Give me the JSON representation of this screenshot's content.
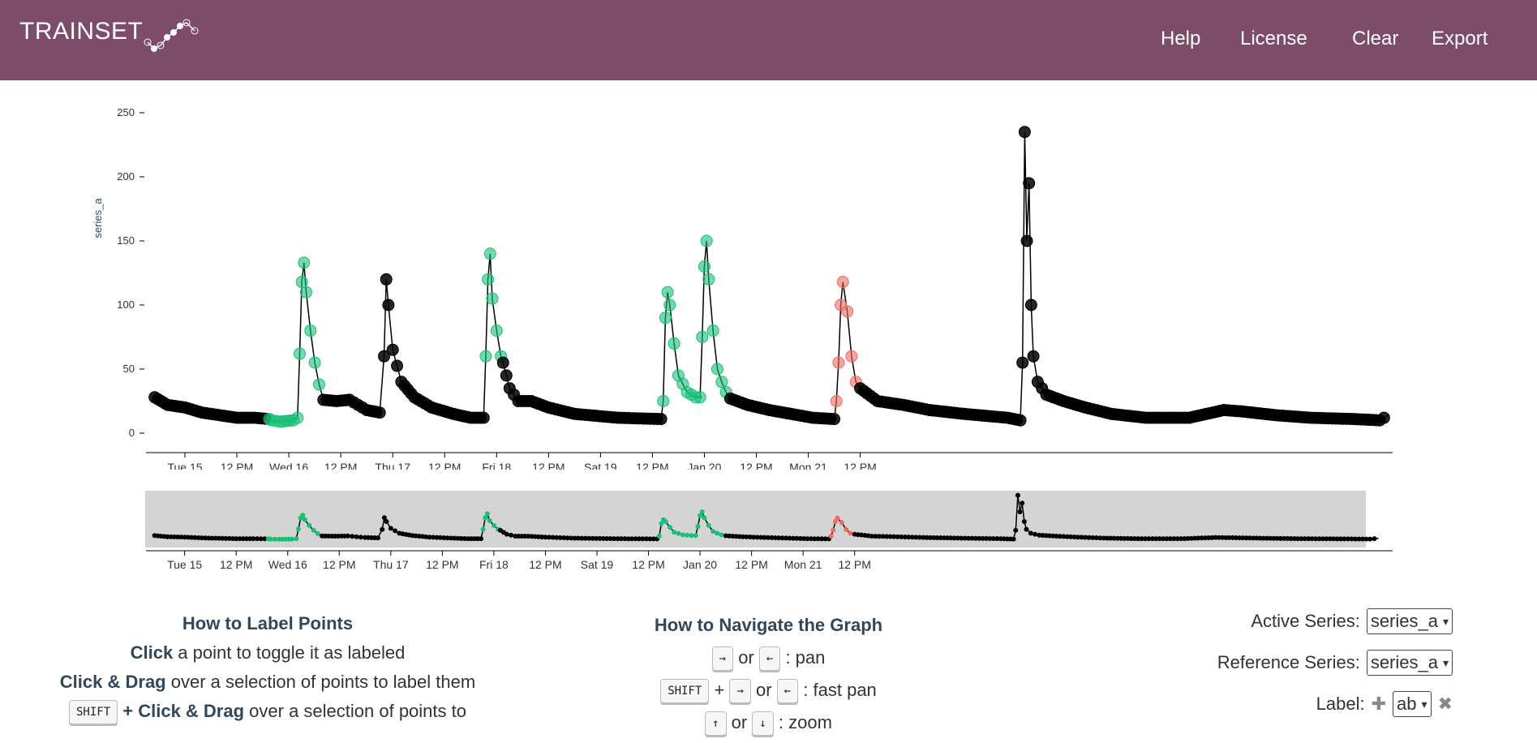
{
  "header": {
    "logo": "TRAINSET",
    "nav": [
      "Help",
      "License",
      "Clear",
      "Export"
    ]
  },
  "chart": {
    "ylabel": "series_a",
    "yticks": [
      "250",
      "200",
      "150",
      "100",
      "50",
      "0"
    ],
    "xticks": [
      "Tue 15",
      "12 PM",
      "Wed 16",
      "12 PM",
      "Thu 17",
      "12 PM",
      "Fri 18",
      "12 PM",
      "Sat 19",
      "12 PM",
      "Jan 20",
      "12 PM",
      "Mon 21",
      "12 PM"
    ],
    "context_xticks": [
      "Tue 15",
      "12 PM",
      "Wed 16",
      "12 PM",
      "Thu 17",
      "12 PM",
      "Fri 18",
      "12 PM",
      "Sat 19",
      "12 PM",
      "Jan 20",
      "12 PM",
      "Mon 21",
      "12 PM"
    ]
  },
  "chart_data": {
    "type": "scatter",
    "ylabel": "series_a",
    "ylim": [
      0,
      250
    ],
    "x_unit": "hours since Tue 15 00:00",
    "colors": {
      "unlabeled": "#000000",
      "label_green": "#19c076",
      "label_red": "#f06b62"
    },
    "series": [
      {
        "name": "series_a",
        "points": [
          [
            -7,
            28
          ],
          [
            -4,
            22
          ],
          [
            0,
            20
          ],
          [
            4,
            16
          ],
          [
            8,
            14
          ],
          [
            12,
            12
          ],
          [
            16,
            12
          ],
          [
            19.5,
            11
          ],
          [
            20,
            10
          ],
          [
            22,
            9
          ],
          [
            25,
            10
          ],
          [
            26,
            12
          ],
          [
            26.5,
            62
          ],
          [
            27,
            118
          ],
          [
            27.5,
            133
          ],
          [
            28,
            110
          ],
          [
            29,
            80
          ],
          [
            30,
            55
          ],
          [
            31,
            38
          ],
          [
            32,
            26
          ],
          [
            35,
            25
          ],
          [
            38,
            26
          ],
          [
            40,
            22
          ],
          [
            42,
            18
          ],
          [
            45,
            16
          ],
          [
            46,
            60
          ],
          [
            46.5,
            120
          ],
          [
            47,
            100
          ],
          [
            48,
            65
          ],
          [
            50,
            40
          ],
          [
            53,
            28
          ],
          [
            57,
            20
          ],
          [
            62,
            15
          ],
          [
            66,
            12
          ],
          [
            69,
            12
          ],
          [
            69.5,
            60
          ],
          [
            70,
            120
          ],
          [
            70.5,
            140
          ],
          [
            71,
            105
          ],
          [
            72,
            80
          ],
          [
            73,
            60
          ],
          [
            73.5,
            55
          ],
          [
            75,
            35
          ],
          [
            77,
            25
          ],
          [
            80,
            25
          ],
          [
            84,
            20
          ],
          [
            90,
            15
          ],
          [
            100,
            12
          ],
          [
            110,
            11
          ],
          [
            110.5,
            25
          ],
          [
            111,
            90
          ],
          [
            111.5,
            110
          ],
          [
            112,
            100
          ],
          [
            113,
            70
          ],
          [
            114,
            45
          ],
          [
            116,
            32
          ],
          [
            118,
            28
          ],
          [
            119,
            28
          ],
          [
            119.5,
            75
          ],
          [
            120,
            130
          ],
          [
            120.5,
            150
          ],
          [
            121,
            120
          ],
          [
            122,
            80
          ],
          [
            123,
            50
          ],
          [
            124,
            40
          ],
          [
            125,
            32
          ],
          [
            126,
            27
          ],
          [
            130,
            22
          ],
          [
            135,
            18
          ],
          [
            140,
            15
          ],
          [
            145,
            12
          ],
          [
            150,
            11
          ],
          [
            150.5,
            25
          ],
          [
            151,
            55
          ],
          [
            151.5,
            100
          ],
          [
            152,
            118
          ],
          [
            153,
            95
          ],
          [
            154,
            60
          ],
          [
            155,
            40
          ],
          [
            156,
            35
          ],
          [
            160,
            25
          ],
          [
            166,
            22
          ],
          [
            172,
            18
          ],
          [
            180,
            15
          ],
          [
            190,
            12
          ],
          [
            193,
            10
          ],
          [
            193.5,
            55
          ],
          [
            194,
            235
          ],
          [
            194.5,
            150
          ],
          [
            195,
            195
          ],
          [
            195.5,
            100
          ],
          [
            196,
            60
          ],
          [
            197,
            40
          ],
          [
            199,
            30
          ],
          [
            203,
            25
          ],
          [
            208,
            20
          ],
          [
            214,
            15
          ],
          [
            222,
            12
          ],
          [
            232,
            12
          ],
          [
            240,
            18
          ],
          [
            244,
            17
          ],
          [
            252,
            14
          ],
          [
            260,
            12
          ],
          [
            270,
            11
          ],
          [
            276,
            10
          ],
          [
            278,
            14
          ]
        ]
      }
    ]
  },
  "help_label": {
    "title": "How to Label Points",
    "line1_bold": "Click",
    "line1_text": " a point to toggle it as labeled",
    "line2_bold": "Click & Drag",
    "line2_text": " over a selection of points to label them",
    "line3_key": "SHIFT",
    "line3_bold": " + Click & Drag",
    "line3_text": " over a selection of points to"
  },
  "help_nav": {
    "title": "How to Navigate the Graph",
    "key_right": "→",
    "key_left": "←",
    "key_up": "↑",
    "key_down": "↓",
    "key_shift": "SHIFT",
    "or": "or",
    "plus": "+",
    "pan": ": pan",
    "fast_pan": ": fast pan",
    "zoom": ": zoom"
  },
  "controls": {
    "active_label": "Active Series:",
    "active_value": "series_a",
    "reference_label": "Reference Series:",
    "reference_value": "series_a",
    "label_label": "Label:",
    "label_value": "ab",
    "add_icon": "✚",
    "remove_icon": "✖"
  }
}
